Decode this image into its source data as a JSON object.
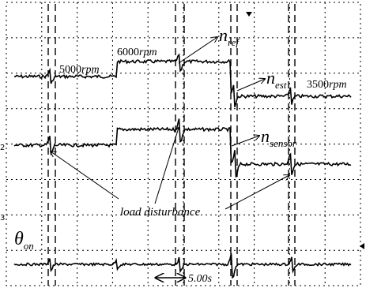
{
  "speed_labels": [
    {
      "value": "5000",
      "unit": "rpm"
    },
    {
      "value": "6000",
      "unit": "rpm"
    },
    {
      "value": "3500",
      "unit": "rpm"
    }
  ],
  "trace_labels": [
    {
      "main": "n",
      "sub": "ref"
    },
    {
      "main": "n",
      "sub": "est"
    },
    {
      "main": "n",
      "sub": "sensor"
    },
    {
      "main": "θ",
      "sub": "on"
    }
  ],
  "annotation": "load disturbance",
  "time_scale": "5.00s",
  "channel_markers": [
    "2",
    "3"
  ]
}
